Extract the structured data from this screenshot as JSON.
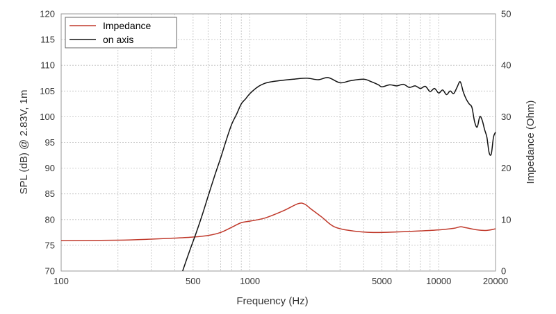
{
  "chart_data": {
    "type": "line",
    "xlabel": "Frequency (Hz)",
    "ylabel_left": "SPL (dB) @ 2.83V, 1m",
    "ylabel_right": "Impedance (Ohm)",
    "x_scale": "log",
    "xlim": [
      100,
      20000
    ],
    "ylim_left": [
      70,
      120
    ],
    "ylim_right": [
      0,
      50
    ],
    "x_ticks": [
      100,
      500,
      1000,
      5000,
      10000,
      20000
    ],
    "x_tick_labels": [
      "100",
      "500",
      "1000",
      "5000",
      "10000",
      "20000"
    ],
    "y_left_ticks": [
      70,
      75,
      80,
      85,
      90,
      95,
      100,
      105,
      110,
      115,
      120
    ],
    "y_left_tick_labels": [
      "70",
      "75",
      "80",
      "85",
      "90",
      "95",
      "100",
      "105",
      "110",
      "115",
      "120"
    ],
    "y_right_ticks": [
      0,
      10,
      20,
      30,
      40,
      50
    ],
    "y_right_tick_labels": [
      "0",
      "10",
      "20",
      "30",
      "40",
      "50"
    ],
    "grid": true,
    "legend_position": "top-left",
    "series": [
      {
        "name": "Impedance",
        "color": "#c0392b",
        "axis": "right",
        "x": [
          100,
          200,
          300,
          400,
          500,
          600,
          700,
          800,
          900,
          1000,
          1200,
          1500,
          1800,
          1950,
          2100,
          2400,
          2800,
          3500,
          4500,
          6000,
          8000,
          10000,
          12000,
          13000,
          14000,
          16000,
          18000,
          20000
        ],
        "y": [
          5.9,
          6.0,
          6.2,
          6.4,
          6.6,
          6.9,
          7.5,
          8.5,
          9.4,
          9.7,
          10.3,
          11.7,
          13.1,
          13.0,
          12.1,
          10.5,
          8.6,
          7.8,
          7.5,
          7.6,
          7.8,
          8.0,
          8.3,
          8.6,
          8.4,
          8.0,
          7.9,
          8.2
        ]
      },
      {
        "name": "on axis",
        "color": "#111111",
        "axis": "left",
        "x": [
          440,
          480,
          520,
          560,
          600,
          650,
          700,
          750,
          800,
          850,
          900,
          950,
          1000,
          1100,
          1200,
          1300,
          1500,
          1700,
          2000,
          2300,
          2600,
          3000,
          3400,
          4000,
          4400,
          4800,
          5000,
          5500,
          6000,
          6500,
          7000,
          7500,
          8000,
          8500,
          9000,
          9500,
          10000,
          10500,
          11000,
          11500,
          12000,
          12500,
          13000,
          13500,
          14000,
          14500,
          15000,
          15500,
          16000,
          16500,
          17000,
          17500,
          18000,
          18500,
          19000,
          19500,
          20000
        ],
        "y": [
          70,
          74,
          77.5,
          81,
          84.5,
          88.5,
          92,
          95.5,
          98.5,
          100.5,
          102.5,
          103.5,
          104.5,
          105.8,
          106.5,
          106.8,
          107.1,
          107.3,
          107.5,
          107.2,
          107.6,
          106.6,
          107.0,
          107.3,
          106.8,
          106.2,
          105.8,
          106.2,
          106.0,
          106.3,
          105.7,
          106.0,
          105.5,
          105.9,
          104.9,
          105.5,
          104.6,
          105.2,
          104.3,
          105.0,
          104.5,
          105.7,
          106.8,
          104.8,
          103.4,
          102.5,
          101.8,
          99.0,
          98.0,
          100.0,
          99.3,
          97.5,
          96.0,
          93.0,
          92.8,
          96.0,
          97.0
        ]
      }
    ]
  }
}
